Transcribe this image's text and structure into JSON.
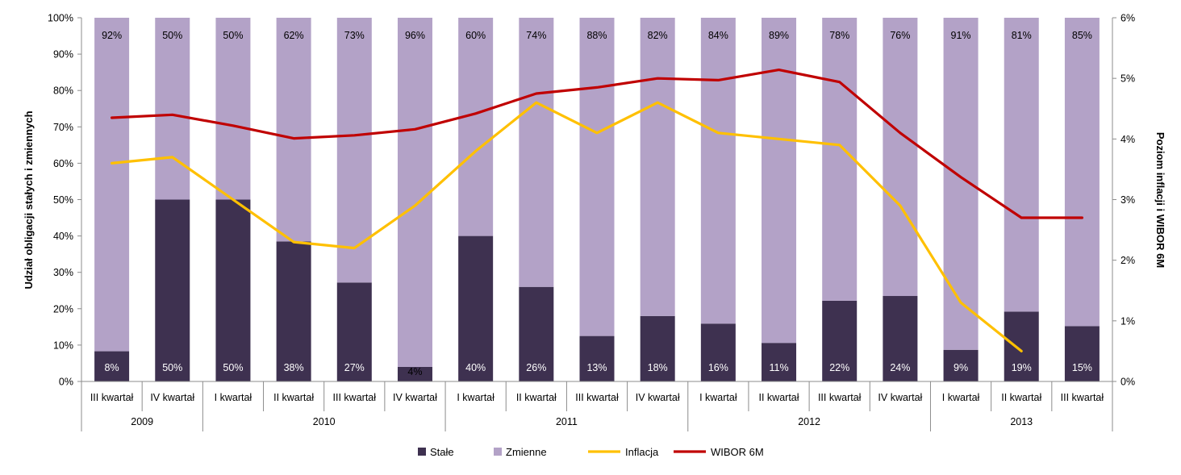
{
  "chart_data": {
    "type": "bar",
    "stacked": true,
    "secondary_type": "line",
    "periods": [
      {
        "year": "2009",
        "quarter": "III kwartał"
      },
      {
        "year": "2009",
        "quarter": "IV kwartał"
      },
      {
        "year": "2010",
        "quarter": "I kwartał"
      },
      {
        "year": "2010",
        "quarter": "II kwartał"
      },
      {
        "year": "2010",
        "quarter": "III kwartał"
      },
      {
        "year": "2010",
        "quarter": "IV kwartał"
      },
      {
        "year": "2011",
        "quarter": "I kwartał"
      },
      {
        "year": "2011",
        "quarter": "II kwartał"
      },
      {
        "year": "2011",
        "quarter": "III kwartał"
      },
      {
        "year": "2011",
        "quarter": "IV kwartał"
      },
      {
        "year": "2012",
        "quarter": "I kwartał"
      },
      {
        "year": "2012",
        "quarter": "II kwartał"
      },
      {
        "year": "2012",
        "quarter": "III kwartał"
      },
      {
        "year": "2012",
        "quarter": "IV kwartał"
      },
      {
        "year": "2013",
        "quarter": "I kwartał"
      },
      {
        "year": "2013",
        "quarter": "II kwartał"
      },
      {
        "year": "2013",
        "quarter": "III kwartał"
      }
    ],
    "years": [
      "2009",
      "2010",
      "2011",
      "2012",
      "2013"
    ],
    "bar_series": [
      {
        "name": "Stałe",
        "color": "#3e3150",
        "values": [
          8.3,
          50,
          50,
          38.5,
          27.2,
          4,
          40,
          26,
          12.5,
          18,
          15.9,
          10.6,
          22.2,
          23.5,
          8.7,
          19.2,
          15.2
        ],
        "labels": [
          "8%",
          "50%",
          "50%",
          "38%",
          "27%",
          "4%",
          "40%",
          "26%",
          "13%",
          "18%",
          "16%",
          "11%",
          "22%",
          "24%",
          "9%",
          "19%",
          "15%"
        ]
      },
      {
        "name": "Zmienne",
        "color": "#b3a2c7",
        "values": [
          91.7,
          50,
          50,
          61.5,
          72.8,
          96,
          60,
          74,
          87.5,
          82,
          84.1,
          89.4,
          77.8,
          76.5,
          91.3,
          80.8,
          84.8
        ],
        "labels": [
          "92%",
          "50%",
          "50%",
          "62%",
          "73%",
          "96%",
          "60%",
          "74%",
          "88%",
          "82%",
          "84%",
          "89%",
          "78%",
          "76%",
          "91%",
          "81%",
          "85%"
        ]
      }
    ],
    "line_series": [
      {
        "name": "Inflacja",
        "color": "#ffc000",
        "values": [
          3.6,
          3.7,
          3.0,
          2.3,
          2.2,
          2.9,
          3.8,
          4.6,
          4.1,
          4.6,
          4.1,
          4.0,
          3.9,
          2.9,
          1.3,
          0.5,
          null
        ]
      },
      {
        "name": "WIBOR 6M",
        "color": "#c00000",
        "values": [
          4.35,
          4.4,
          4.22,
          4.01,
          4.06,
          4.16,
          4.42,
          4.75,
          4.85,
          5.0,
          4.97,
          5.14,
          4.94,
          4.1,
          3.37,
          2.7,
          2.7
        ]
      }
    ],
    "y_axis_left": {
      "title": "Udział obligacji stałych i zmiennych",
      "min": 0,
      "max": 100,
      "step": 10,
      "ticks": [
        "0%",
        "10%",
        "20%",
        "30%",
        "40%",
        "50%",
        "60%",
        "70%",
        "80%",
        "90%",
        "100%"
      ]
    },
    "y_axis_right": {
      "title": "Poziom inflacji i WIBOR 6M",
      "min": 0,
      "max": 6,
      "step": 1,
      "ticks": [
        "0%",
        "1%",
        "2%",
        "3%",
        "4%",
        "5%",
        "6%"
      ]
    },
    "legend": {
      "position": "bottom",
      "items": [
        {
          "label": "Stałe",
          "kind": "box",
          "color": "#3e3150"
        },
        {
          "label": "Zmienne",
          "kind": "box",
          "color": "#b3a2c7"
        },
        {
          "label": "Inflacja",
          "kind": "line",
          "color": "#ffc000"
        },
        {
          "label": "WIBOR 6M",
          "kind": "line",
          "color": "#c00000"
        }
      ]
    },
    "grid": false
  }
}
